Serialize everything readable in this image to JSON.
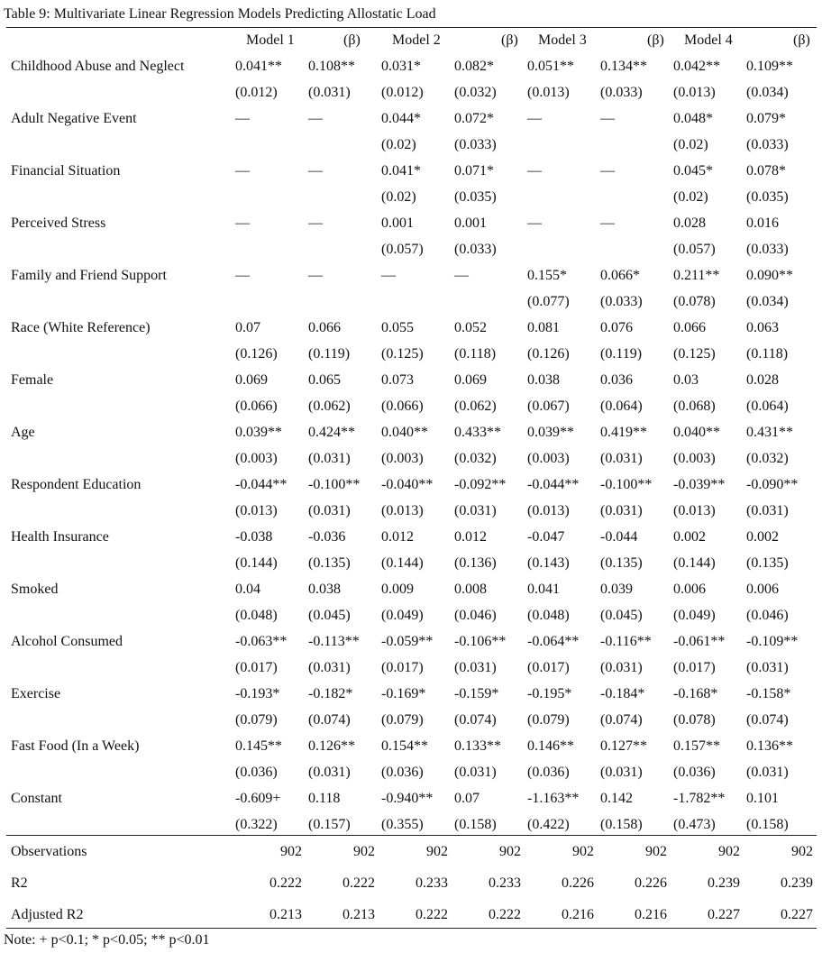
{
  "title": "Table 9: Multivariate Linear Regression Models Predicting Allostatic Load",
  "headers": [
    {
      "model": "Model 1",
      "beta": "(β)"
    },
    {
      "model": "Model 2",
      "beta": "(β)"
    },
    {
      "model": "Model 3",
      "beta": "(β)"
    },
    {
      "model": "Model 4",
      "beta": "(β)"
    }
  ],
  "rows": [
    {
      "label": "Childhood Abuse and Neglect",
      "coef": [
        "0.041**",
        "0.108**",
        "0.031*",
        "0.082*",
        "0.051**",
        "0.134**",
        "0.042**",
        "0.109**"
      ],
      "se": [
        "(0.012)",
        "(0.031)",
        "(0.012)",
        "(0.032)",
        "(0.013)",
        "(0.033)",
        "(0.013)",
        "(0.034)"
      ]
    },
    {
      "label": "Adult Negative Event",
      "coef": [
        "—",
        "—",
        "0.044*",
        "0.072*",
        "—",
        "—",
        "0.048*",
        "0.079*"
      ],
      "se": [
        "",
        "",
        "(0.02)",
        "(0.033)",
        "",
        "",
        "(0.02)",
        "(0.033)"
      ]
    },
    {
      "label": "Financial Situation",
      "coef": [
        "—",
        "—",
        "0.041*",
        "0.071*",
        "—",
        "—",
        "0.045*",
        "0.078*"
      ],
      "se": [
        "",
        "",
        "(0.02)",
        "(0.035)",
        "",
        "",
        "(0.02)",
        "(0.035)"
      ]
    },
    {
      "label": "Perceived Stress",
      "coef": [
        "—",
        "—",
        "0.001",
        "0.001",
        "—",
        "—",
        "0.028",
        "0.016"
      ],
      "se": [
        "",
        "",
        "(0.057)",
        "(0.033)",
        "",
        "",
        "(0.057)",
        "(0.033)"
      ]
    },
    {
      "label": "Family and Friend Support",
      "coef": [
        "—",
        "—",
        "—",
        "—",
        "0.155*",
        "0.066*",
        "0.211**",
        "0.090**"
      ],
      "se": [
        "",
        "",
        "",
        "",
        "(0.077)",
        "(0.033)",
        "(0.078)",
        "(0.034)"
      ]
    },
    {
      "label": "Race (White Reference)",
      "coef": [
        "0.07",
        "0.066",
        "0.055",
        "0.052",
        "0.081",
        "0.076",
        "0.066",
        "0.063"
      ],
      "se": [
        "(0.126)",
        "(0.119)",
        "(0.125)",
        "(0.118)",
        "(0.126)",
        "(0.119)",
        "(0.125)",
        "(0.118)"
      ]
    },
    {
      "label": "Female",
      "coef": [
        "0.069",
        "0.065",
        "0.073",
        "0.069",
        "0.038",
        "0.036",
        "0.03",
        "0.028"
      ],
      "se": [
        "(0.066)",
        "(0.062)",
        "(0.066)",
        "(0.062)",
        "(0.067)",
        "(0.064)",
        "(0.068)",
        "(0.064)"
      ]
    },
    {
      "label": "Age",
      "coef": [
        "0.039**",
        "0.424**",
        "0.040**",
        "0.433**",
        "0.039**",
        "0.419**",
        "0.040**",
        "0.431**"
      ],
      "se": [
        "(0.003)",
        "(0.031)",
        "(0.003)",
        "(0.032)",
        "(0.003)",
        "(0.031)",
        "(0.003)",
        "(0.032)"
      ]
    },
    {
      "label": "Respondent Education",
      "coef": [
        "-0.044**",
        "-0.100**",
        "-0.040**",
        "-0.092**",
        "-0.044**",
        "-0.100**",
        "-0.039**",
        "-0.090**"
      ],
      "se": [
        "(0.013)",
        "(0.031)",
        "(0.013)",
        "(0.031)",
        "(0.013)",
        "(0.031)",
        "(0.013)",
        "(0.031)"
      ]
    },
    {
      "label": "Health Insurance",
      "coef": [
        "-0.038",
        "-0.036",
        "0.012",
        "0.012",
        "-0.047",
        "-0.044",
        "0.002",
        "0.002"
      ],
      "se": [
        "(0.144)",
        "(0.135)",
        "(0.144)",
        "(0.136)",
        "(0.143)",
        "(0.135)",
        "(0.144)",
        "(0.135)"
      ]
    },
    {
      "label": "Smoked",
      "coef": [
        "0.04",
        "0.038",
        "0.009",
        "0.008",
        "0.041",
        "0.039",
        "0.006",
        "0.006"
      ],
      "se": [
        "(0.048)",
        "(0.045)",
        "(0.049)",
        "(0.046)",
        "(0.048)",
        "(0.045)",
        "(0.049)",
        "(0.046)"
      ]
    },
    {
      "label": "Alcohol Consumed",
      "coef": [
        "-0.063**",
        "-0.113**",
        "-0.059**",
        "-0.106**",
        "-0.064**",
        "-0.116**",
        "-0.061**",
        "-0.109**"
      ],
      "se": [
        "(0.017)",
        "(0.031)",
        "(0.017)",
        "(0.031)",
        "(0.017)",
        "(0.031)",
        "(0.017)",
        "(0.031)"
      ]
    },
    {
      "label": "Exercise",
      "coef": [
        "-0.193*",
        "-0.182*",
        "-0.169*",
        "-0.159*",
        "-0.195*",
        "-0.184*",
        "-0.168*",
        "-0.158*"
      ],
      "se": [
        "(0.079)",
        "(0.074)",
        "(0.079)",
        "(0.074)",
        "(0.079)",
        "(0.074)",
        "(0.078)",
        "(0.074)"
      ]
    },
    {
      "label": "Fast Food (In a Week)",
      "coef": [
        "0.145**",
        "0.126**",
        "0.154**",
        "0.133**",
        "0.146**",
        "0.127**",
        "0.157**",
        "0.136**"
      ],
      "se": [
        "(0.036)",
        "(0.031)",
        "(0.036)",
        "(0.031)",
        "(0.036)",
        "(0.031)",
        "(0.036)",
        "(0.031)"
      ]
    },
    {
      "label": "Constant",
      "coef": [
        "-0.609+",
        "0.118",
        "-0.940**",
        "0.07",
        "-1.163**",
        "0.142",
        "-1.782**",
        "0.101"
      ],
      "se": [
        "(0.322)",
        "(0.157)",
        "(0.355)",
        "(0.158)",
        "(0.422)",
        "(0.158)",
        "(0.473)",
        "(0.158)"
      ]
    }
  ],
  "stats": [
    {
      "label": "Observations",
      "values": [
        "902",
        "902",
        "902",
        "902",
        "902",
        "902",
        "902",
        "902"
      ]
    },
    {
      "label": "R2",
      "values": [
        "0.222",
        "0.222",
        "0.233",
        "0.233",
        "0.226",
        "0.226",
        "0.239",
        "0.239"
      ]
    },
    {
      "label": "Adjusted R2",
      "values": [
        "0.213",
        "0.213",
        "0.222",
        "0.222",
        "0.216",
        "0.216",
        "0.227",
        "0.227"
      ]
    }
  ],
  "note": "Note: + p<0.1; * p<0.05; ** p<0.01"
}
